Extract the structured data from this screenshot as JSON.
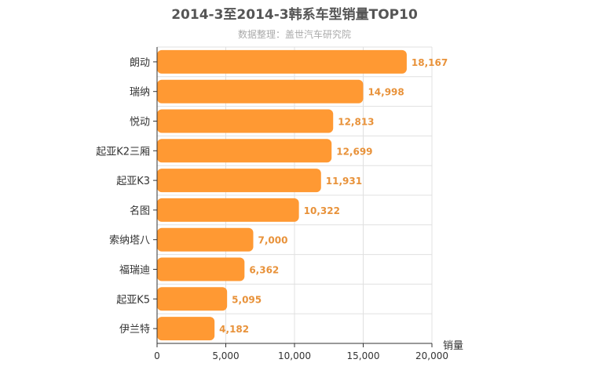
{
  "chart_data": {
    "type": "bar",
    "orientation": "horizontal",
    "title": "2014-3至2014-3韩系车型销量TOP10",
    "subtitle": "数据整理：盖世汽车研究院",
    "xlabel": "销量",
    "ylabel": "",
    "categories": [
      "朗动",
      "瑞纳",
      "悦动",
      "起亚K2三厢",
      "起亚K3",
      "名图",
      "索纳塔八",
      "福瑞迪",
      "起亚K5",
      "伊兰特"
    ],
    "values": [
      18167,
      14998,
      12813,
      12699,
      11931,
      10322,
      7000,
      6362,
      5095,
      4182
    ],
    "value_labels": [
      "18,167",
      "14,998",
      "12,813",
      "12,699",
      "11,931",
      "10,322",
      "7,000",
      "6,362",
      "5,095",
      "4,182"
    ],
    "xlim": [
      0,
      20000
    ],
    "x_ticks": [
      "0",
      "5,000",
      "10,000",
      "15,000",
      "20,000"
    ],
    "grid": true,
    "colors": {
      "bar": "#ff9933",
      "label": "#e8923a"
    }
  }
}
